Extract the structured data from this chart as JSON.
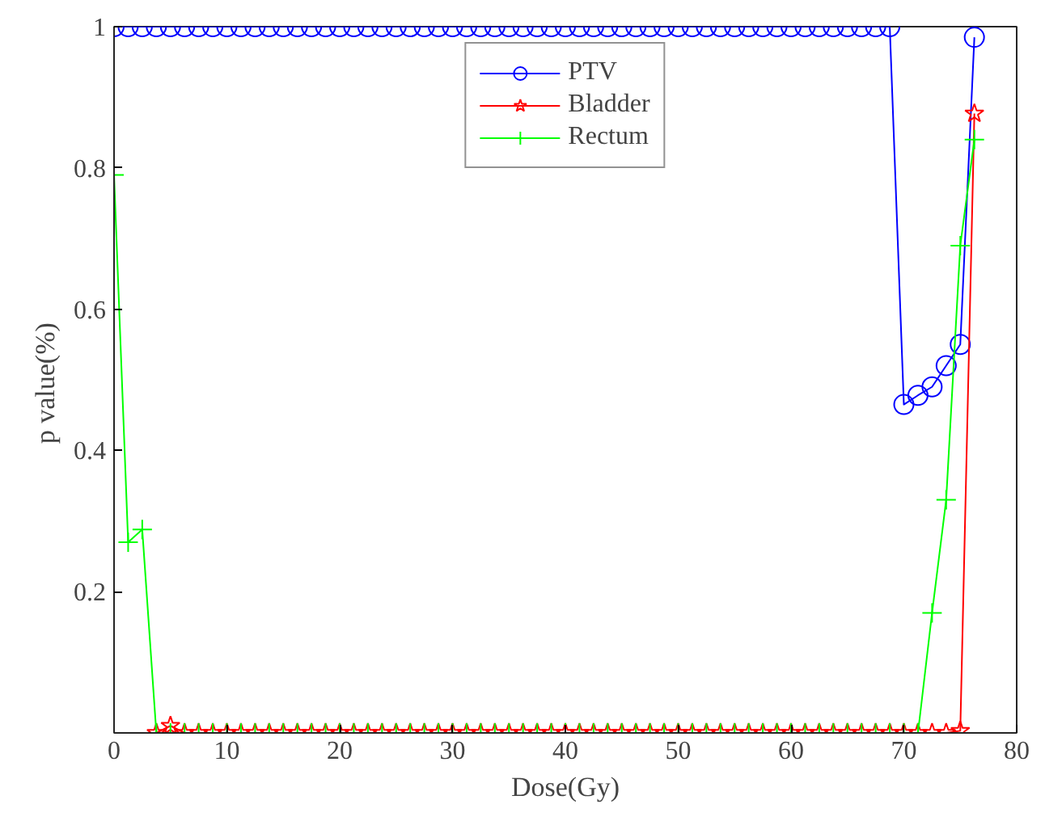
{
  "chart_data": {
    "type": "line",
    "xlabel": "Dose(Gy)",
    "ylabel": "p  value(%)",
    "x": [
      0,
      1.25,
      2.5,
      3.75,
      5,
      6.25,
      7.5,
      8.75,
      10,
      11.25,
      12.5,
      13.75,
      15,
      16.25,
      17.5,
      18.75,
      20,
      21.25,
      22.5,
      23.75,
      25,
      26.25,
      27.5,
      28.75,
      30,
      31.25,
      32.5,
      33.75,
      35,
      36.25,
      37.5,
      38.75,
      40,
      41.25,
      42.5,
      43.75,
      45,
      46.25,
      47.5,
      48.75,
      50,
      51.25,
      52.5,
      53.75,
      55,
      56.25,
      57.5,
      58.75,
      60,
      61.25,
      62.5,
      63.75,
      65,
      66.25,
      67.5,
      68.75,
      70,
      71.25,
      72.5,
      73.75,
      75,
      76.25
    ],
    "series": [
      {
        "name": "PTV",
        "color": "#0000ff",
        "marker": "circle",
        "values": [
          1,
          1,
          1,
          1,
          1,
          1,
          1,
          1,
          1,
          1,
          1,
          1,
          1,
          1,
          1,
          1,
          1,
          1,
          1,
          1,
          1,
          1,
          1,
          1,
          1,
          1,
          1,
          1,
          1,
          1,
          1,
          1,
          1,
          1,
          1,
          1,
          1,
          1,
          1,
          1,
          1,
          1,
          1,
          1,
          1,
          1,
          1,
          1,
          1,
          1,
          1,
          1,
          1,
          1,
          1,
          1,
          0.465,
          0.478,
          0.49,
          0.52,
          0.55,
          0.985
        ]
      },
      {
        "name": "Bladder",
        "color": "#ff0000",
        "marker": "star",
        "values": [
          null,
          null,
          null,
          0,
          0.01,
          0,
          0,
          0,
          0,
          0,
          0,
          0,
          0,
          0,
          0,
          0,
          0,
          0,
          0,
          0,
          0,
          0,
          0,
          0,
          0,
          0,
          0,
          0,
          0,
          0,
          0,
          0,
          0,
          0,
          0,
          0,
          0,
          0,
          0,
          0,
          0,
          0,
          0,
          0,
          0,
          0,
          0,
          0,
          0,
          0,
          0,
          0,
          0,
          0,
          0,
          0,
          0,
          0,
          0,
          0,
          0.003,
          0.877
        ]
      },
      {
        "name": "Rectum",
        "color": "#00ff00",
        "marker": "cross",
        "values": [
          0.79,
          0.27,
          0.288,
          0,
          0,
          0,
          0,
          0,
          0,
          0,
          0,
          0,
          0,
          0,
          0,
          0,
          0,
          0,
          0,
          0,
          0,
          0,
          0,
          0,
          0,
          0,
          0,
          0,
          0,
          0,
          0,
          0,
          0,
          0,
          0,
          0,
          0,
          0,
          0,
          0,
          0,
          0,
          0,
          0,
          0,
          0,
          0,
          0,
          0,
          0,
          0,
          0,
          0,
          0,
          0,
          0,
          0,
          0,
          0.17,
          0.33,
          0.69,
          0.84
        ]
      }
    ],
    "xlim": [
      0,
      80
    ],
    "xticks": [
      0,
      10,
      20,
      30,
      40,
      50,
      60,
      70,
      80
    ],
    "ylim": [
      0,
      1
    ],
    "yticks": [
      0.2,
      0.4,
      0.6,
      0.8,
      1
    ],
    "grid": false,
    "legend": "top",
    "line_style": "solid"
  }
}
